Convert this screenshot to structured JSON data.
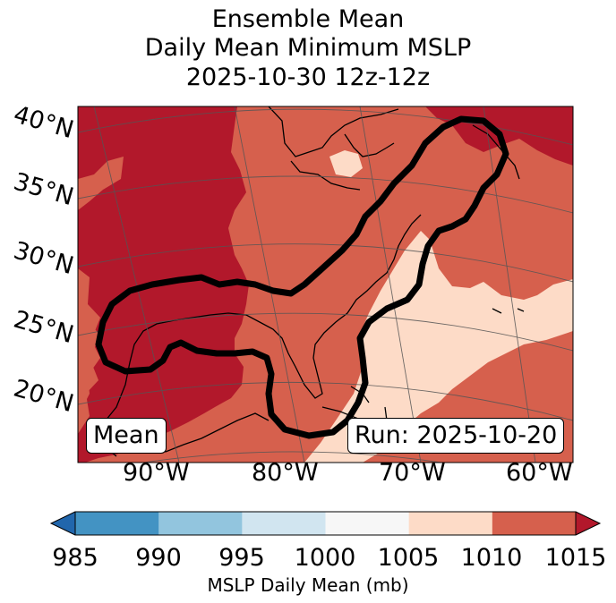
{
  "title": {
    "line1": "Ensemble Mean",
    "line2": "Daily Mean Minimum MSLP",
    "line3": "2025-10-30 12z-12z"
  },
  "map": {
    "lat_labels": [
      "40°N",
      "35°N",
      "30°N",
      "25°N",
      "20°N"
    ],
    "lon_labels": [
      "90°W",
      "80°W",
      "70°W",
      "60°W"
    ],
    "mean_box": "Mean",
    "run_box": "Run: 2025-10-20",
    "fill_colors": {
      "1010-1015": "#d6604d",
      "1015+": "#b2182b",
      "1005-1010": "#fddbc7"
    }
  },
  "colorbar": {
    "label": "MSLP Daily Mean (mb)",
    "ticks": [
      "985",
      "990",
      "995",
      "1000",
      "1005",
      "1010",
      "1015"
    ],
    "colors": [
      "#2166ac",
      "#4393c3",
      "#92c5de",
      "#d1e5f0",
      "#f7f7f7",
      "#fddbc7",
      "#d6604d",
      "#b2182b"
    ]
  }
}
